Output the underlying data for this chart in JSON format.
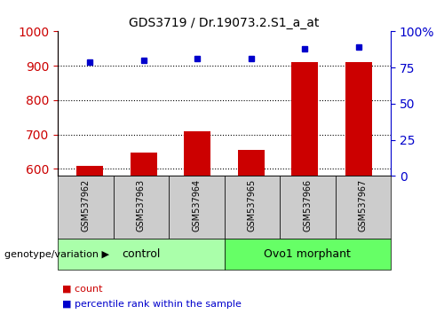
{
  "title": "GDS3719 / Dr.19073.2.S1_a_at",
  "samples": [
    "GSM537962",
    "GSM537963",
    "GSM537964",
    "GSM537965",
    "GSM537966",
    "GSM537967"
  ],
  "counts": [
    610,
    648,
    710,
    655,
    912,
    912
  ],
  "percentiles": [
    79,
    80,
    81,
    81,
    88,
    89
  ],
  "ylim_left": [
    580,
    1000
  ],
  "ylim_right": [
    0,
    100
  ],
  "yticks_left": [
    600,
    700,
    800,
    900,
    1000
  ],
  "yticks_right": [
    0,
    25,
    50,
    75,
    100
  ],
  "bar_color": "#cc0000",
  "dot_color": "#0000cc",
  "groups": [
    {
      "label": "control",
      "indices": [
        0,
        1,
        2
      ],
      "color": "#aaffaa"
    },
    {
      "label": "Ovo1 morphant",
      "indices": [
        3,
        4,
        5
      ],
      "color": "#66ff66"
    }
  ],
  "group_label": "genotype/variation",
  "legend_count_label": "count",
  "legend_percentile_label": "percentile rank within the sample",
  "background_color": "#ffffff",
  "plot_bg_color": "#ffffff",
  "tick_area_bg": "#cccccc",
  "dotted_line_color": "#000000",
  "left_axis_color": "#cc0000",
  "right_axis_color": "#0000cc",
  "hgrid_ticks": [
    600,
    700,
    800,
    900
  ],
  "right_tick_labels": [
    "0",
    "25",
    "50",
    "75",
    "100%"
  ]
}
